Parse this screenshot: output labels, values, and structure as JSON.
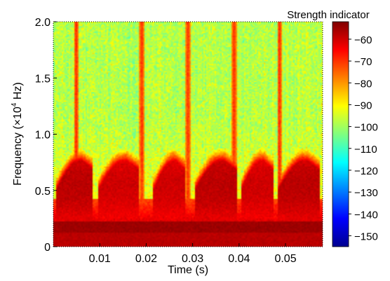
{
  "chart_data": {
    "type": "heatmap",
    "title": "",
    "xlabel": "Time (s)",
    "ylabel": "Frequency (×10⁴ Hz)",
    "ylabel_parts": {
      "pre": "Frequency (×10",
      "sup": "4",
      "post": " Hz)"
    },
    "xlim": [
      0,
      0.058
    ],
    "ylim": [
      0,
      2.0
    ],
    "x_ticks": [
      0.01,
      0.02,
      0.03,
      0.04,
      0.05
    ],
    "x_tick_labels": [
      "0.01",
      "0.02",
      "0.03",
      "0.04",
      "0.05"
    ],
    "y_ticks": [
      0,
      0.5,
      1.0,
      1.5,
      2.0
    ],
    "y_tick_labels": [
      "0",
      "0.5",
      "1.0",
      "1.5",
      "2.0"
    ],
    "grid": false,
    "colorbar": {
      "label": "Strength indicator",
      "range": [
        -155,
        -52
      ],
      "ticks": [
        -60,
        -70,
        -80,
        -90,
        -100,
        -110,
        -120,
        -130,
        -140,
        -150
      ],
      "tick_labels": [
        "−60",
        "−70",
        "−80",
        "−90",
        "−100",
        "−110",
        "−120",
        "−130",
        "−140",
        "−150"
      ],
      "colormap": "jet"
    },
    "features": {
      "low_band": {
        "freq_range": [
          0,
          0.22
        ],
        "level": -55
      },
      "bursts": [
        {
          "t_start": 0.0005,
          "t_end": 0.0085,
          "level": -58
        },
        {
          "t_start": 0.0095,
          "t_end": 0.0185,
          "level": -60
        },
        {
          "t_start": 0.0215,
          "t_end": 0.0285,
          "level": -60
        },
        {
          "t_start": 0.0305,
          "t_end": 0.0395,
          "level": -58
        },
        {
          "t_start": 0.0405,
          "t_end": 0.0475,
          "level": -60
        },
        {
          "t_start": 0.0485,
          "t_end": 0.0575,
          "level": -58
        }
      ],
      "transients": [
        0.0048,
        0.019,
        0.029,
        0.039,
        0.0488
      ],
      "background_level": -98
    }
  }
}
